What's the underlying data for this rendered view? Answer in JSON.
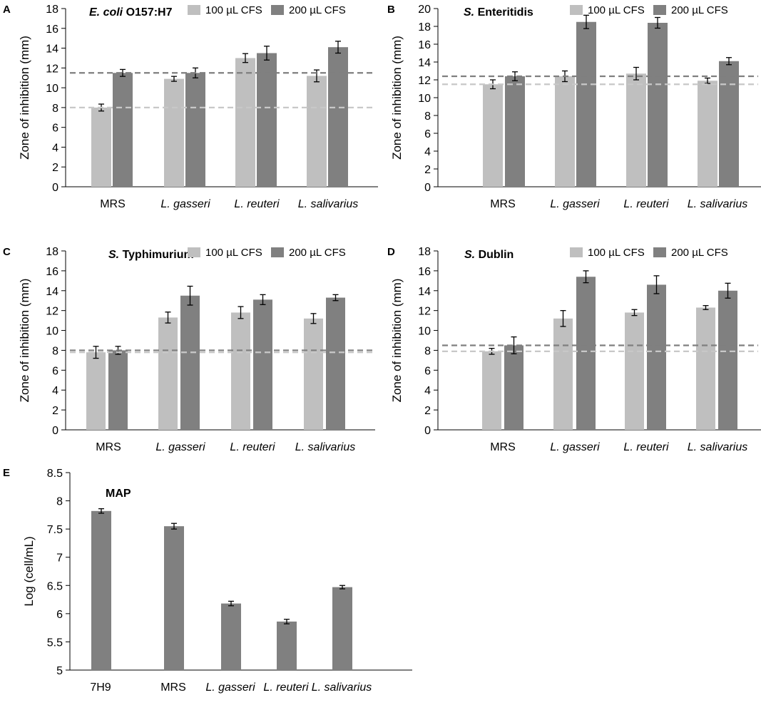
{
  "colors": {
    "light": "#BFBFBF",
    "dark": "#808080",
    "dash_light": "#C8C8C8",
    "dash_dark": "#7F7F7F",
    "axis": "#000000"
  },
  "chart_data": [
    {
      "panel": "A",
      "type": "bar",
      "title": "O157:H7",
      "title_italic": "E. coli",
      "ylabel": "Zone of inhibition (mm)",
      "ylim": [
        0,
        18
      ],
      "ytick_step": 2,
      "yticks": [
        "0",
        "2",
        "4",
        "6",
        "8",
        "10",
        "12",
        "14",
        "16",
        "18"
      ],
      "categories": [
        "MRS",
        "L. gasseri",
        "L. reuteri",
        "L. salivarius"
      ],
      "italic_categories": [
        false,
        true,
        true,
        true
      ],
      "legend": [
        "100 µL CFS",
        "200 µL CFS"
      ],
      "series": [
        {
          "name": "100 µL CFS",
          "values": [
            8.0,
            10.9,
            13.0,
            11.2
          ],
          "errors": [
            0.35,
            0.25,
            0.45,
            0.6
          ]
        },
        {
          "name": "200 µL CFS",
          "values": [
            11.5,
            11.5,
            13.5,
            14.1
          ],
          "errors": [
            0.35,
            0.5,
            0.7,
            0.6
          ]
        }
      ],
      "reference_lines": {
        "100 µL CFS": 8.0,
        "200 µL CFS": 11.5
      }
    },
    {
      "panel": "B",
      "type": "bar",
      "title": "Enteritidis",
      "title_italic": "S.",
      "ylabel": "Zone of inhibition (mm)",
      "ylim": [
        0,
        20
      ],
      "ytick_step": 2,
      "yticks": [
        "0",
        "2",
        "4",
        "6",
        "8",
        "10",
        "12",
        "14",
        "16",
        "18",
        "20"
      ],
      "categories": [
        "MRS",
        "L. gasseri",
        "L. reuteri",
        "L. salivarius"
      ],
      "italic_categories": [
        false,
        true,
        true,
        true
      ],
      "legend": [
        "100 µL CFS",
        "200 µL CFS"
      ],
      "series": [
        {
          "name": "100 µL CFS",
          "values": [
            11.5,
            12.4,
            12.7,
            11.9
          ],
          "errors": [
            0.5,
            0.6,
            0.7,
            0.3
          ]
        },
        {
          "name": "200 µL CFS",
          "values": [
            12.4,
            18.5,
            18.4,
            14.1
          ],
          "errors": [
            0.5,
            0.75,
            0.6,
            0.4
          ]
        }
      ],
      "reference_lines": {
        "100 µL CFS": 11.5,
        "200 µL CFS": 12.4
      }
    },
    {
      "panel": "C",
      "type": "bar",
      "title": "Typhimurium",
      "title_italic": "S.",
      "ylabel": "Zone of inhibition (mm)",
      "ylim": [
        0,
        18
      ],
      "ytick_step": 2,
      "yticks": [
        "0",
        "2",
        "4",
        "6",
        "8",
        "10",
        "12",
        "14",
        "16",
        "18"
      ],
      "categories": [
        "MRS",
        "L. gasseri",
        "L. reuteri",
        "L. salivarius"
      ],
      "italic_categories": [
        false,
        true,
        true,
        true
      ],
      "legend": [
        "100 µL CFS",
        "200 µL CFS"
      ],
      "series": [
        {
          "name": "100 µL CFS",
          "values": [
            7.8,
            11.3,
            11.8,
            11.2
          ],
          "errors": [
            0.6,
            0.55,
            0.6,
            0.5
          ]
        },
        {
          "name": "200 µL CFS",
          "values": [
            8.0,
            13.5,
            13.1,
            13.3
          ],
          "errors": [
            0.4,
            0.95,
            0.5,
            0.3
          ]
        }
      ],
      "reference_lines": {
        "100 µL CFS": 7.8,
        "200 µL CFS": 8.0
      }
    },
    {
      "panel": "D",
      "type": "bar",
      "title": "Dublin",
      "title_italic": "S.",
      "ylabel": "Zone of inhibition (mm)",
      "ylim": [
        0,
        18
      ],
      "ytick_step": 2,
      "yticks": [
        "0",
        "2",
        "4",
        "6",
        "8",
        "10",
        "12",
        "14",
        "16",
        "18"
      ],
      "categories": [
        "MRS",
        "L. gasseri",
        "L. reuteri",
        "L. salivarius"
      ],
      "italic_categories": [
        false,
        true,
        true,
        true
      ],
      "legend": [
        "100 µL CFS",
        "200 µL CFS"
      ],
      "series": [
        {
          "name": "100 µL CFS",
          "values": [
            7.9,
            11.2,
            11.8,
            12.3
          ],
          "errors": [
            0.3,
            0.8,
            0.3,
            0.2
          ]
        },
        {
          "name": "200 µL CFS",
          "values": [
            8.5,
            15.4,
            14.6,
            14.0
          ],
          "errors": [
            0.85,
            0.6,
            0.9,
            0.75
          ]
        }
      ],
      "reference_lines": {
        "100 µL CFS": 7.9,
        "200 µL CFS": 8.5
      }
    },
    {
      "panel": "E",
      "type": "bar",
      "title": "MAP",
      "title_italic": "",
      "ylabel": "Log (cell/mL)",
      "ylim": [
        5,
        8.5
      ],
      "ytick_step": 0.5,
      "yticks": [
        "5",
        "5.5",
        "6",
        "6.5",
        "7",
        "7.5",
        "8",
        "8.5"
      ],
      "categories": [
        "7H9",
        "MRS",
        "L. gasseri",
        "L. reuteri",
        "L. salivarius"
      ],
      "italic_categories": [
        false,
        false,
        true,
        true,
        true
      ],
      "legend": [],
      "series": [
        {
          "name": "MAP",
          "values": [
            7.82,
            7.55,
            6.18,
            5.86,
            6.47
          ],
          "errors": [
            0.04,
            0.05,
            0.04,
            0.04,
            0.03
          ]
        }
      ],
      "reference_lines": {}
    }
  ]
}
